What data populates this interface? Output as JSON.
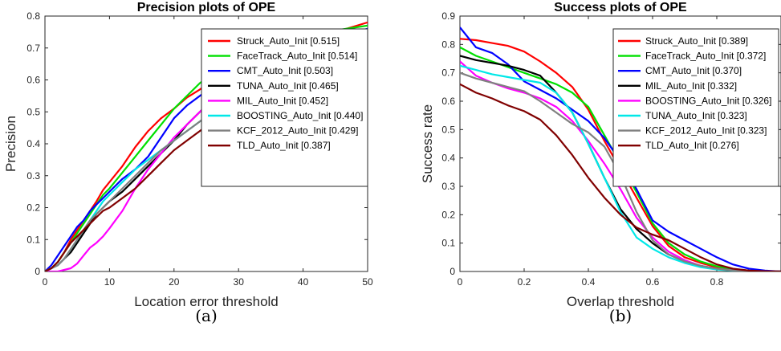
{
  "chart_data": [
    {
      "type": "line",
      "title": "Precision plots of OPE",
      "xlabel": "Location error threshold",
      "ylabel": "Precision",
      "caption": "(a)",
      "xlim": [
        0,
        50
      ],
      "ylim": [
        0,
        0.8
      ],
      "xticks": [
        0,
        10,
        20,
        30,
        40,
        50
      ],
      "yticks": [
        0,
        0.1,
        0.2,
        0.3,
        0.4,
        0.5,
        0.6,
        0.7,
        0.8
      ],
      "xtick_labels": [
        "0",
        "10",
        "20",
        "30",
        "40",
        "50"
      ],
      "ytick_labels": [
        "0",
        "0.1",
        "0.2",
        "0.3",
        "0.4",
        "0.5",
        "0.6",
        "0.7",
        "0.8"
      ],
      "grid": false,
      "legend_position": "top-right",
      "series": [
        {
          "name": "Struck_Auto_Init [0.515]",
          "color": "#ff0000",
          "x": [
            0,
            1,
            2,
            3,
            4,
            5,
            6,
            7,
            8,
            9,
            10,
            12,
            14,
            16,
            18,
            20,
            22,
            24,
            26,
            28,
            30,
            35,
            40,
            45,
            50
          ],
          "y": [
            0,
            0.01,
            0.03,
            0.06,
            0.1,
            0.13,
            0.16,
            0.19,
            0.22,
            0.255,
            0.28,
            0.33,
            0.39,
            0.44,
            0.48,
            0.51,
            0.545,
            0.57,
            0.6,
            0.62,
            0.64,
            0.68,
            0.72,
            0.75,
            0.78
          ]
        },
        {
          "name": "FaceTrack_Auto_Init [0.514]",
          "color": "#00e000",
          "x": [
            0,
            1,
            2,
            3,
            4,
            5,
            6,
            7,
            8,
            9,
            10,
            12,
            14,
            16,
            18,
            20,
            22,
            24,
            26,
            28,
            30,
            35,
            40,
            45,
            50
          ],
          "y": [
            0,
            0.01,
            0.03,
            0.06,
            0.09,
            0.12,
            0.15,
            0.18,
            0.21,
            0.24,
            0.26,
            0.31,
            0.36,
            0.41,
            0.46,
            0.51,
            0.55,
            0.59,
            0.62,
            0.64,
            0.66,
            0.7,
            0.73,
            0.755,
            0.77
          ]
        },
        {
          "name": "CMT_Auto_Init [0.503]",
          "color": "#0000ff",
          "x": [
            0,
            1,
            2,
            3,
            4,
            5,
            6,
            7,
            8,
            9,
            10,
            12,
            14,
            16,
            18,
            20,
            22,
            24,
            26,
            28,
            30,
            35,
            40,
            45,
            50
          ],
          "y": [
            0,
            0.02,
            0.05,
            0.08,
            0.11,
            0.14,
            0.16,
            0.19,
            0.21,
            0.23,
            0.25,
            0.29,
            0.32,
            0.36,
            0.42,
            0.48,
            0.52,
            0.55,
            0.58,
            0.61,
            0.63,
            0.67,
            0.71,
            0.74,
            0.76
          ]
        },
        {
          "name": "TUNA_Auto_Init [0.465]",
          "color": "#000000",
          "x": [
            0,
            1,
            2,
            3,
            4,
            5,
            6,
            7,
            8,
            9,
            10,
            12,
            14,
            16,
            18,
            20,
            22,
            24,
            26,
            28,
            30,
            35,
            40,
            45,
            50
          ],
          "y": [
            0,
            0.01,
            0.02,
            0.04,
            0.06,
            0.09,
            0.12,
            0.15,
            0.18,
            0.2,
            0.22,
            0.25,
            0.29,
            0.33,
            0.37,
            0.41,
            0.46,
            0.5,
            0.54,
            0.58,
            0.61,
            0.66,
            0.7,
            0.73,
            0.75
          ]
        },
        {
          "name": "MIL_Auto_Init [0.452]",
          "color": "#ff00ff",
          "x": [
            0,
            1,
            2,
            3,
            4,
            5,
            6,
            7,
            8,
            9,
            10,
            12,
            14,
            16,
            18,
            20,
            22,
            24,
            26,
            28,
            30,
            35,
            40,
            45,
            50
          ],
          "y": [
            0,
            0,
            0,
            0.005,
            0.01,
            0.025,
            0.05,
            0.075,
            0.09,
            0.11,
            0.135,
            0.19,
            0.26,
            0.32,
            0.37,
            0.42,
            0.46,
            0.5,
            0.54,
            0.58,
            0.61,
            0.66,
            0.69,
            0.72,
            0.745
          ]
        },
        {
          "name": "BOOSTING_Auto_Init [0.440]",
          "color": "#00e8e8",
          "x": [
            0,
            1,
            2,
            3,
            4,
            5,
            6,
            7,
            8,
            9,
            10,
            12,
            14,
            16,
            18,
            20,
            22,
            24,
            26,
            28,
            30,
            35,
            40,
            45,
            50
          ],
          "y": [
            0,
            0.01,
            0.02,
            0.04,
            0.07,
            0.1,
            0.13,
            0.16,
            0.19,
            0.22,
            0.24,
            0.28,
            0.32,
            0.35,
            0.38,
            0.41,
            0.44,
            0.47,
            0.5,
            0.53,
            0.56,
            0.62,
            0.67,
            0.71,
            0.735
          ]
        },
        {
          "name": "KCF_2012_Auto_Init [0.429]",
          "color": "#808080",
          "x": [
            0,
            1,
            2,
            3,
            4,
            5,
            6,
            7,
            8,
            9,
            10,
            12,
            14,
            16,
            18,
            20,
            22,
            24,
            26,
            28,
            30,
            35,
            40,
            45,
            50
          ],
          "y": [
            0,
            0.01,
            0.02,
            0.04,
            0.07,
            0.1,
            0.13,
            0.16,
            0.18,
            0.2,
            0.22,
            0.26,
            0.3,
            0.34,
            0.38,
            0.41,
            0.44,
            0.47,
            0.5,
            0.53,
            0.56,
            0.61,
            0.65,
            0.675,
            0.69
          ]
        },
        {
          "name": "TLD_Auto_Init [0.387]",
          "color": "#800000",
          "x": [
            0,
            1,
            2,
            3,
            4,
            5,
            6,
            7,
            8,
            9,
            10,
            12,
            14,
            16,
            18,
            20,
            22,
            24,
            26,
            28,
            30,
            35,
            40,
            45,
            50
          ],
          "y": [
            0,
            0.01,
            0.03,
            0.06,
            0.09,
            0.11,
            0.13,
            0.15,
            0.17,
            0.19,
            0.2,
            0.23,
            0.26,
            0.3,
            0.34,
            0.38,
            0.41,
            0.44,
            0.47,
            0.49,
            0.51,
            0.55,
            0.58,
            0.61,
            0.645
          ]
        }
      ]
    },
    {
      "type": "line",
      "title": "Success plots of OPE",
      "xlabel": "Overlap threshold",
      "ylabel": "Success rate",
      "caption": "(b)",
      "xlim": [
        0,
        1
      ],
      "ylim": [
        0,
        0.9
      ],
      "xticks": [
        0,
        0.2,
        0.4,
        0.6,
        0.8
      ],
      "yticks": [
        0,
        0.1,
        0.2,
        0.3,
        0.4,
        0.5,
        0.6,
        0.7,
        0.8,
        0.9
      ],
      "xtick_labels": [
        "0",
        "0.2",
        "0.4",
        "0.6",
        "0.8"
      ],
      "ytick_labels": [
        "0",
        "0.1",
        "0.2",
        "0.3",
        "0.4",
        "0.5",
        "0.6",
        "0.7",
        "0.8",
        "0.9"
      ],
      "grid": false,
      "legend_position": "top-right",
      "series": [
        {
          "name": "Struck_Auto_Init [0.389]",
          "color": "#ff0000",
          "x": [
            0,
            0.05,
            0.1,
            0.15,
            0.2,
            0.25,
            0.3,
            0.35,
            0.4,
            0.45,
            0.5,
            0.55,
            0.6,
            0.65,
            0.7,
            0.75,
            0.8,
            0.85,
            0.9,
            0.95,
            1.0
          ],
          "y": [
            0.82,
            0.815,
            0.805,
            0.795,
            0.775,
            0.74,
            0.7,
            0.65,
            0.57,
            0.46,
            0.36,
            0.26,
            0.16,
            0.09,
            0.05,
            0.03,
            0.015,
            0.008,
            0.003,
            0.001,
            0
          ]
        },
        {
          "name": "FaceTrack_Auto_Init [0.372]",
          "color": "#00e000",
          "x": [
            0,
            0.05,
            0.1,
            0.15,
            0.2,
            0.25,
            0.3,
            0.35,
            0.4,
            0.45,
            0.5,
            0.55,
            0.6,
            0.65,
            0.7,
            0.75,
            0.8,
            0.85,
            0.9,
            0.95,
            1.0
          ],
          "y": [
            0.79,
            0.76,
            0.74,
            0.72,
            0.7,
            0.68,
            0.66,
            0.63,
            0.58,
            0.48,
            0.38,
            0.28,
            0.17,
            0.1,
            0.06,
            0.035,
            0.018,
            0.008,
            0.003,
            0.001,
            0
          ]
        },
        {
          "name": "CMT_Auto_Init [0.370]",
          "color": "#0000ff",
          "x": [
            0,
            0.05,
            0.1,
            0.15,
            0.2,
            0.25,
            0.3,
            0.35,
            0.4,
            0.45,
            0.5,
            0.55,
            0.6,
            0.65,
            0.7,
            0.75,
            0.8,
            0.85,
            0.9,
            0.95,
            1.0
          ],
          "y": [
            0.86,
            0.79,
            0.77,
            0.73,
            0.67,
            0.64,
            0.61,
            0.57,
            0.53,
            0.47,
            0.39,
            0.29,
            0.18,
            0.14,
            0.11,
            0.08,
            0.05,
            0.025,
            0.01,
            0.003,
            0
          ]
        },
        {
          "name": "MIL_Auto_Init [0.332]",
          "color": "#000000",
          "x": [
            0,
            0.05,
            0.1,
            0.15,
            0.2,
            0.25,
            0.3,
            0.35,
            0.4,
            0.45,
            0.5,
            0.55,
            0.6,
            0.65,
            0.7,
            0.75,
            0.8,
            0.85,
            0.9,
            0.95,
            1.0
          ],
          "y": [
            0.76,
            0.745,
            0.735,
            0.725,
            0.71,
            0.69,
            0.63,
            0.56,
            0.45,
            0.33,
            0.22,
            0.15,
            0.1,
            0.06,
            0.035,
            0.02,
            0.01,
            0.004,
            0.001,
            0,
            0
          ]
        },
        {
          "name": "BOOSTING_Auto_Init [0.326]",
          "color": "#ff00ff",
          "x": [
            0,
            0.05,
            0.1,
            0.15,
            0.2,
            0.25,
            0.3,
            0.35,
            0.4,
            0.45,
            0.5,
            0.55,
            0.6,
            0.65,
            0.7,
            0.75,
            0.8,
            0.85,
            0.9,
            0.95,
            1.0
          ],
          "y": [
            0.74,
            0.69,
            0.665,
            0.645,
            0.63,
            0.61,
            0.58,
            0.53,
            0.46,
            0.38,
            0.29,
            0.19,
            0.12,
            0.07,
            0.04,
            0.02,
            0.01,
            0.004,
            0.001,
            0,
            0
          ]
        },
        {
          "name": "TUNA_Auto_Init [0.323]",
          "color": "#00e8e8",
          "x": [
            0,
            0.05,
            0.1,
            0.15,
            0.2,
            0.25,
            0.3,
            0.35,
            0.4,
            0.45,
            0.5,
            0.55,
            0.6,
            0.65,
            0.7,
            0.75,
            0.8,
            0.85,
            0.9,
            0.95,
            1.0
          ],
          "y": [
            0.725,
            0.71,
            0.695,
            0.685,
            0.675,
            0.665,
            0.63,
            0.56,
            0.45,
            0.33,
            0.21,
            0.12,
            0.08,
            0.05,
            0.03,
            0.015,
            0.007,
            0.003,
            0.001,
            0,
            0
          ]
        },
        {
          "name": "KCF_2012_Auto_Init [0.323]",
          "color": "#808080",
          "x": [
            0,
            0.05,
            0.1,
            0.15,
            0.2,
            0.25,
            0.3,
            0.35,
            0.4,
            0.45,
            0.5,
            0.55,
            0.6,
            0.65,
            0.7,
            0.75,
            0.8,
            0.85,
            0.9,
            0.95,
            1.0
          ],
          "y": [
            0.7,
            0.68,
            0.665,
            0.65,
            0.635,
            0.6,
            0.56,
            0.52,
            0.49,
            0.44,
            0.34,
            0.21,
            0.11,
            0.06,
            0.035,
            0.02,
            0.01,
            0.004,
            0.001,
            0,
            0
          ]
        },
        {
          "name": "TLD_Auto_Init [0.276]",
          "color": "#800000",
          "x": [
            0,
            0.05,
            0.1,
            0.15,
            0.2,
            0.25,
            0.3,
            0.35,
            0.4,
            0.45,
            0.5,
            0.55,
            0.6,
            0.65,
            0.7,
            0.75,
            0.8,
            0.85,
            0.9,
            0.95,
            1.0
          ],
          "y": [
            0.66,
            0.63,
            0.61,
            0.585,
            0.565,
            0.535,
            0.48,
            0.41,
            0.33,
            0.26,
            0.2,
            0.155,
            0.13,
            0.11,
            0.08,
            0.05,
            0.025,
            0.01,
            0.003,
            0.001,
            0
          ]
        }
      ]
    }
  ]
}
